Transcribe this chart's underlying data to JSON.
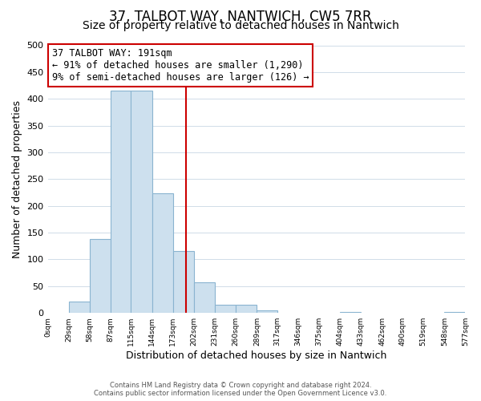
{
  "title": "37, TALBOT WAY, NANTWICH, CW5 7RR",
  "subtitle": "Size of property relative to detached houses in Nantwich",
  "xlabel": "Distribution of detached houses by size in Nantwich",
  "ylabel": "Number of detached properties",
  "bar_color": "#cde0ee",
  "bar_edge_color": "#8ab4d0",
  "bin_edges": [
    0,
    29,
    58,
    87,
    115,
    144,
    173,
    202,
    231,
    260,
    289,
    317,
    346,
    375,
    404,
    433,
    462,
    490,
    519,
    548,
    577
  ],
  "bar_heights": [
    0,
    22,
    138,
    415,
    415,
    224,
    115,
    57,
    15,
    15,
    5,
    0,
    0,
    0,
    2,
    0,
    0,
    0,
    0,
    2
  ],
  "tick_labels": [
    "0sqm",
    "29sqm",
    "58sqm",
    "87sqm",
    "115sqm",
    "144sqm",
    "173sqm",
    "202sqm",
    "231sqm",
    "260sqm",
    "289sqm",
    "317sqm",
    "346sqm",
    "375sqm",
    "404sqm",
    "433sqm",
    "462sqm",
    "490sqm",
    "519sqm",
    "548sqm",
    "577sqm"
  ],
  "vline_x": 191,
  "vline_color": "#cc0000",
  "ylim": [
    0,
    500
  ],
  "xlim": [
    0,
    577
  ],
  "annotation_title": "37 TALBOT WAY: 191sqm",
  "annotation_line1": "← 91% of detached houses are smaller (1,290)",
  "annotation_line2": "9% of semi-detached houses are larger (126) →",
  "annotation_box_color": "#ffffff",
  "annotation_box_edge": "#cc0000",
  "footer_line1": "Contains HM Land Registry data © Crown copyright and database right 2024.",
  "footer_line2": "Contains public sector information licensed under the Open Government Licence v3.0.",
  "background_color": "#ffffff",
  "grid_color": "#d0dce8",
  "title_fontsize": 12,
  "subtitle_fontsize": 10,
  "yticks": [
    0,
    50,
    100,
    150,
    200,
    250,
    300,
    350,
    400,
    450,
    500
  ]
}
